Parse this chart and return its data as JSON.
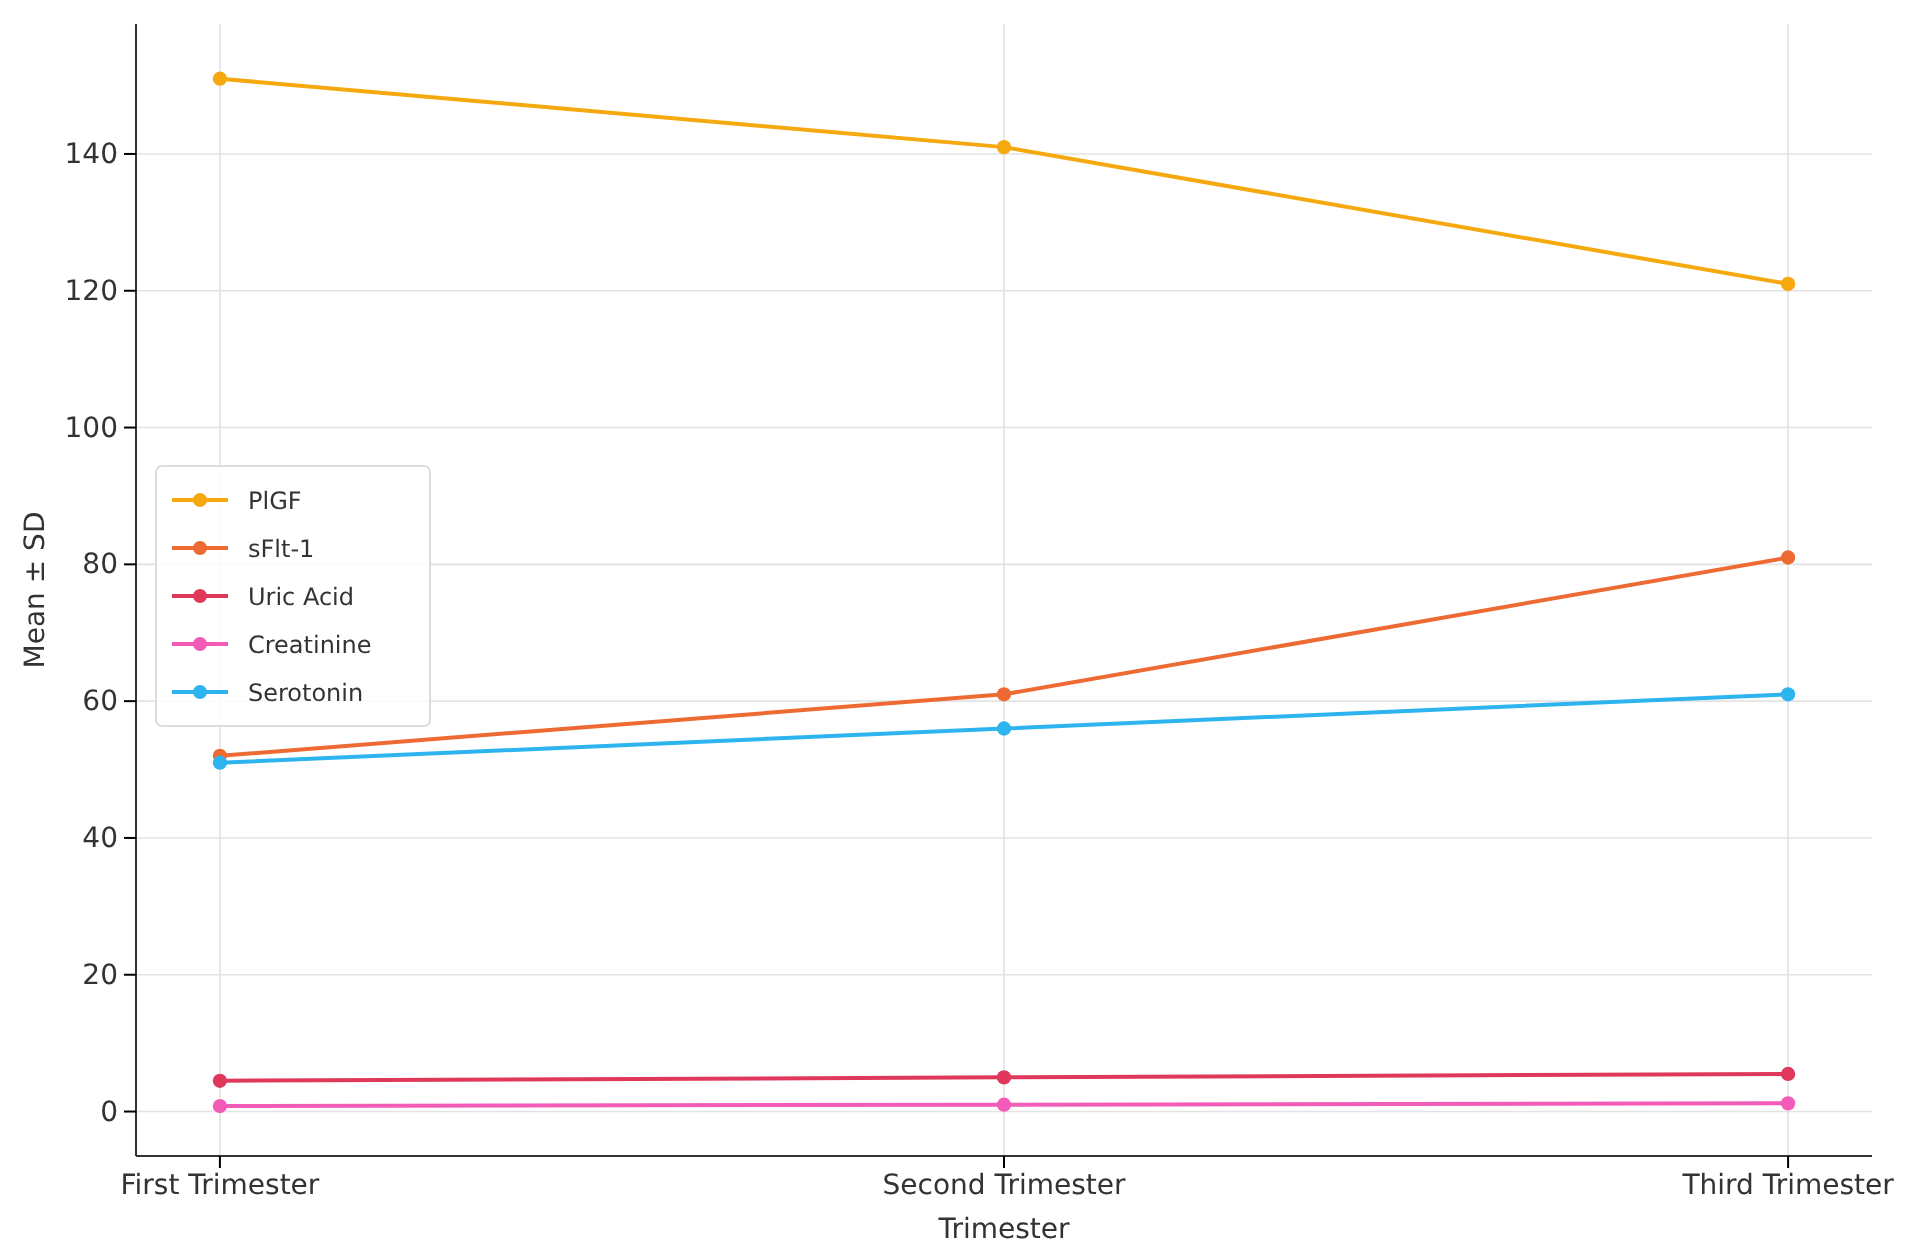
{
  "chart_data": {
    "type": "line",
    "xlabel": "Trimester",
    "ylabel": "Mean ± SD",
    "categories": [
      "First Trimester",
      "Second Trimester",
      "Third Trimester"
    ],
    "series": [
      {
        "name": "PlGF",
        "color": "#f5a90f",
        "values": [
          151,
          141,
          121
        ]
      },
      {
        "name": "sFlt-1",
        "color": "#ee6a33",
        "values": [
          52,
          61,
          81
        ]
      },
      {
        "name": "Uric Acid",
        "color": "#e0385a",
        "values": [
          4.5,
          5,
          5.5
        ]
      },
      {
        "name": "Creatinine",
        "color": "#f25cb8",
        "values": [
          0.8,
          1.0,
          1.2
        ]
      },
      {
        "name": "Serotonin",
        "color": "#2db3ee",
        "values": [
          51,
          56,
          61
        ]
      }
    ],
    "ylim": [
      -6.5,
      159
    ],
    "yticks": [
      0,
      20,
      40,
      60,
      80,
      100,
      120,
      140
    ],
    "grid": true,
    "legend": "center left",
    "marker": "circle",
    "line_style": "solid"
  }
}
